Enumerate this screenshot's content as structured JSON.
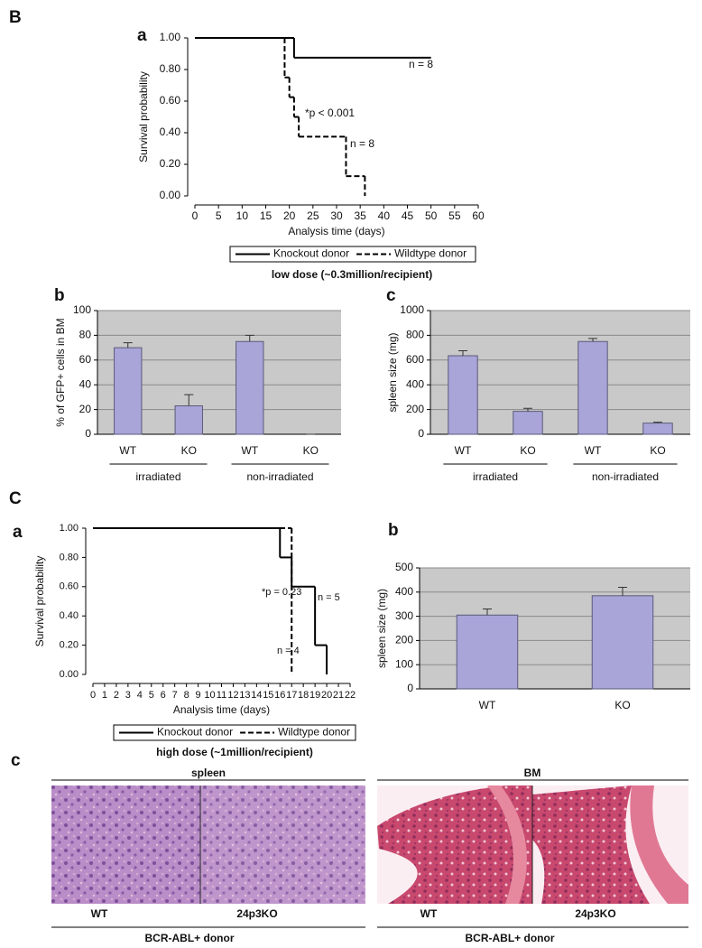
{
  "sections": [
    "B",
    "C"
  ],
  "chart_data": [
    {
      "type": "step",
      "panel": "a",
      "ylabel": "Survival probability",
      "xlabel": "Analysis time (days)",
      "xlim": [
        0,
        60
      ],
      "ylim": [
        0,
        1
      ],
      "xticks": [
        0,
        5,
        10,
        15,
        20,
        25,
        30,
        35,
        40,
        45,
        50,
        55,
        60
      ],
      "yticks": [
        {
          "value": 0,
          "label": "0.00"
        },
        {
          "value": 0.2,
          "label": "0.20"
        },
        {
          "value": 0.4,
          "label": "0.40"
        },
        {
          "value": 0.6,
          "label": "0.60"
        },
        {
          "value": 0.8,
          "label": "0.80"
        },
        {
          "value": 1,
          "label": "1.00"
        }
      ],
      "series": [
        {
          "name": "Knockout donor",
          "color": "#000000",
          "dashed": false,
          "x": [
            0,
            21,
            50
          ],
          "values": [
            1,
            0.875,
            0.875
          ]
        },
        {
          "name": "Wildtype donor",
          "color": "#000000",
          "dashed": true,
          "x": [
            0,
            19,
            20,
            21,
            22,
            32,
            36
          ],
          "values": [
            1,
            0.75,
            0.625,
            0.5,
            0.375,
            0.125,
            0
          ]
        }
      ],
      "annotations": [
        "n = 8",
        "*p < 0.001",
        "n = 8"
      ],
      "caption": "low dose (~0.3million/recipient)"
    },
    {
      "type": "bar",
      "panel": "b",
      "ylabel": "% of GFP+ cells in BM",
      "categories": [
        "WT",
        "KO",
        "WT",
        "KO"
      ],
      "groups": [
        "irradiated",
        "non-irradiated"
      ],
      "values": [
        70,
        23,
        75,
        0
      ],
      "errors": [
        4,
        9,
        5,
        0
      ],
      "color": "#a9a5d9",
      "background": "#c9c9c9",
      "ylim": [
        0,
        100
      ],
      "yticks": [
        0,
        20,
        40,
        60,
        80,
        100
      ],
      "grid": true
    },
    {
      "type": "bar",
      "panel": "c",
      "ylabel": "spleen size (mg)",
      "categories": [
        "WT",
        "KO",
        "WT",
        "KO"
      ],
      "groups": [
        "irradiated",
        "non-irradiated"
      ],
      "values": [
        635,
        185,
        750,
        90
      ],
      "errors": [
        40,
        25,
        25,
        8
      ],
      "color": "#a9a5d9",
      "background": "#c9c9c9",
      "ylim": [
        0,
        1000
      ],
      "yticks": [
        0,
        200,
        400,
        600,
        800,
        1000
      ],
      "grid": true
    },
    {
      "type": "step",
      "panel": "a",
      "ylabel": "Survival probability",
      "xlabel": "Analysis time (days)",
      "xlim": [
        0,
        22
      ],
      "ylim": [
        0,
        1
      ],
      "xticks": [
        0,
        1,
        2,
        3,
        4,
        5,
        6,
        7,
        8,
        9,
        10,
        11,
        12,
        13,
        14,
        15,
        16,
        17,
        18,
        19,
        20,
        21,
        22
      ],
      "yticks": [
        {
          "value": 0,
          "label": "0.00"
        },
        {
          "value": 0.2,
          "label": "0.20"
        },
        {
          "value": 0.4,
          "label": "0.40"
        },
        {
          "value": 0.6,
          "label": "0.60"
        },
        {
          "value": 0.8,
          "label": "0.80"
        },
        {
          "value": 1,
          "label": "1.00"
        }
      ],
      "series": [
        {
          "name": "Knockout donor",
          "color": "#000000",
          "dashed": false,
          "x": [
            0,
            16,
            17,
            19,
            20
          ],
          "values": [
            1,
            0.8,
            0.6,
            0.2,
            0
          ]
        },
        {
          "name": "Wildtype donor",
          "color": "#000000",
          "dashed": true,
          "x": [
            0,
            17
          ],
          "values": [
            1,
            0
          ]
        }
      ],
      "annotations": [
        "*p = 0.23",
        "n = 5",
        "n = 4"
      ],
      "caption": "high dose (~1million/recipient)"
    },
    {
      "type": "bar",
      "panel": "b",
      "ylabel": "spleen size (mg)",
      "categories": [
        "WT",
        "KO"
      ],
      "values": [
        305,
        385
      ],
      "errors": [
        25,
        35
      ],
      "color": "#a9a5d9",
      "background": "#c9c9c9",
      "ylim": [
        0,
        500
      ],
      "yticks": [
        0,
        100,
        200,
        300,
        400,
        500
      ],
      "grid": true
    }
  ],
  "histology": {
    "panel": "c",
    "groups": [
      {
        "title": "spleen",
        "labels": [
          "WT",
          "24p3KO"
        ],
        "caption": "BCR-ABL+ donor"
      },
      {
        "title": "BM",
        "labels": [
          "WT",
          "24p3KO"
        ],
        "caption": "BCR-ABL+ donor"
      }
    ]
  }
}
